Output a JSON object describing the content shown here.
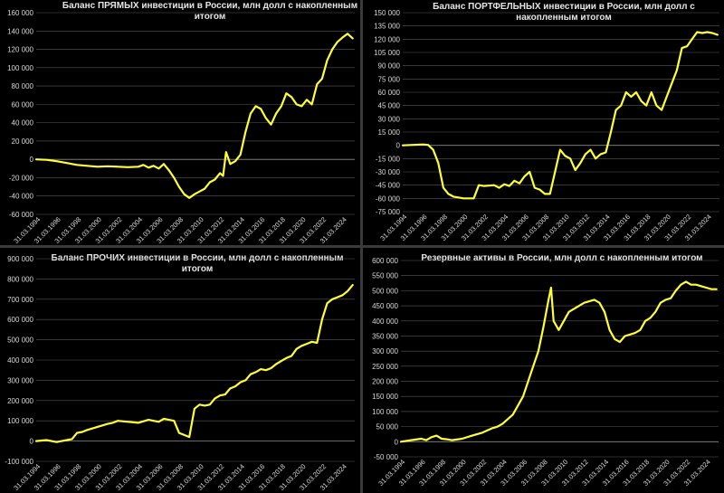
{
  "style": {
    "line_color": "#ffff33",
    "background": "#000000",
    "grid_color": "#595959",
    "text_color": "#e6e6e6"
  },
  "x_tick_labels": [
    "31.03.1994",
    "31.03.1996",
    "31.03.1998",
    "31.03.2000",
    "31.03.2002",
    "31.03.2004",
    "31.03.2006",
    "31.03.2008",
    "31.03.2010",
    "31.03.2012",
    "31.03.2014",
    "31.03.2016",
    "31.03.2018",
    "31.03.2020",
    "31.03.2022",
    "31.03.2024"
  ],
  "chart_data": [
    {
      "type": "line",
      "title": "Баланс ПРЯМЫХ инвестиции в России, млн долл с накопленным итогом",
      "title_lines": [
        "Баланс ПРЯМЫХ инвестиции в России, млн долл с накопленным",
        "итогом"
      ],
      "xlabel": "",
      "ylabel": "",
      "ylim": [
        -60000,
        160000
      ],
      "yticks": [
        -60000,
        -40000,
        -20000,
        0,
        20000,
        40000,
        60000,
        80000,
        100000,
        120000,
        140000,
        160000
      ],
      "ytick_labels": [
        "-60 000",
        "-40 000",
        "-20 000",
        "0",
        "20 000",
        "40 000",
        "60 000",
        "80 000",
        "100 000",
        "120 000",
        "140 000",
        "160 000"
      ],
      "grid": true,
      "series": [
        {
          "x": [
            1994.0,
            1995.0,
            1996.0,
            1997.0,
            1998.0,
            1999.0,
            2000.0,
            2001.0,
            2002.0,
            2003.0,
            2004.0,
            2004.5,
            2005.0,
            2005.5,
            2006.0,
            2006.5,
            2007.0,
            2007.5,
            2008.0,
            2008.5,
            2009.0,
            2009.5,
            2010.0,
            2010.5,
            2011.0,
            2011.5,
            2012.0,
            2012.3,
            2012.6,
            2013.0,
            2013.5,
            2014.0,
            2014.5,
            2015.0,
            2015.5,
            2016.0,
            2016.5,
            2017.0,
            2017.5,
            2018.0,
            2018.5,
            2019.0,
            2019.5,
            2020.0,
            2020.5,
            2021.0,
            2021.5,
            2022.0,
            2022.5,
            2023.0,
            2023.5,
            2024.0,
            2024.5,
            2025.0
          ],
          "values": [
            0,
            -500,
            -2000,
            -4000,
            -6000,
            -7000,
            -8000,
            -7500,
            -8000,
            -8500,
            -8000,
            -6000,
            -9000,
            -7000,
            -10000,
            -5000,
            -12000,
            -20000,
            -30000,
            -38000,
            -42000,
            -38000,
            -35000,
            -32000,
            -25000,
            -22000,
            -15000,
            -18000,
            8000,
            -5000,
            -2000,
            5000,
            30000,
            50000,
            58000,
            55000,
            45000,
            38000,
            50000,
            58000,
            72000,
            68000,
            60000,
            58000,
            65000,
            60000,
            82000,
            88000,
            108000,
            120000,
            128000,
            133000,
            137000,
            132000
          ]
        }
      ]
    },
    {
      "type": "line",
      "title": "Баланс ПОРТФЕЛЬНЫХ инвестиции в России, млн долл с накопленным итогом",
      "title_lines": [
        "Баланс ПОРТФЕЛЬНЫХ инвестиции в России, млн долл с",
        "накопленным итогом"
      ],
      "xlabel": "",
      "ylabel": "",
      "ylim": [
        -75000,
        150000
      ],
      "yticks": [
        -75000,
        -60000,
        -45000,
        -30000,
        -15000,
        0,
        15000,
        30000,
        45000,
        60000,
        75000,
        90000,
        105000,
        120000,
        135000,
        150000
      ],
      "ytick_labels": [
        "-75 000",
        "-60 000",
        "-45 000",
        "-30 000",
        "-15 000",
        "0",
        "15 000",
        "30 000",
        "45 000",
        "60 000",
        "75 000",
        "90 000",
        "105 000",
        "120 000",
        "135 000",
        "150 000"
      ],
      "grid": true,
      "series": [
        {
          "x": [
            1994.0,
            1995.0,
            1996.0,
            1996.5,
            1997.0,
            1997.5,
            1998.0,
            1998.5,
            1999.0,
            2000.0,
            2001.0,
            2001.5,
            2002.0,
            2003.0,
            2003.5,
            2004.0,
            2004.5,
            2005.0,
            2005.5,
            2006.0,
            2006.5,
            2007.0,
            2007.5,
            2008.0,
            2008.5,
            2009.0,
            2009.5,
            2010.0,
            2010.5,
            2011.0,
            2011.5,
            2012.0,
            2012.5,
            2013.0,
            2013.5,
            2014.0,
            2014.5,
            2015.0,
            2015.5,
            2016.0,
            2016.5,
            2017.0,
            2017.5,
            2018.0,
            2018.5,
            2019.0,
            2019.5,
            2020.0,
            2020.5,
            2021.0,
            2021.5,
            2022.0,
            2022.5,
            2023.0,
            2023.5,
            2024.0,
            2024.5,
            2025.0
          ],
          "values": [
            0,
            500,
            1000,
            500,
            -5000,
            -20000,
            -48000,
            -55000,
            -58000,
            -60000,
            -60000,
            -45000,
            -46000,
            -45000,
            -48000,
            -44000,
            -46000,
            -40000,
            -43000,
            -35000,
            -30000,
            -48000,
            -50000,
            -55000,
            -55000,
            -30000,
            -5000,
            -12000,
            -15000,
            -28000,
            -20000,
            -10000,
            -5000,
            -15000,
            -10000,
            -8000,
            15000,
            40000,
            45000,
            60000,
            55000,
            60000,
            50000,
            45000,
            60000,
            45000,
            40000,
            55000,
            70000,
            85000,
            110000,
            112000,
            120000,
            128000,
            127000,
            128000,
            127000,
            125000
          ]
        }
      ]
    },
    {
      "type": "line",
      "title": "Баланс ПРОЧИХ инвестиции в России, млн долл с накопленным итогом",
      "title_lines": [
        "Баланс ПРОЧИХ инвестиции в России, млн долл с накопленным",
        "итогом"
      ],
      "xlabel": "",
      "ylabel": "",
      "ylim": [
        -100000,
        900000
      ],
      "yticks": [
        -100000,
        0,
        100000,
        200000,
        300000,
        400000,
        500000,
        600000,
        700000,
        800000,
        900000
      ],
      "ytick_labels": [
        "-100 000",
        "0",
        "100 000",
        "200 000",
        "300 000",
        "400 000",
        "500 000",
        "600 000",
        "700 000",
        "800 000",
        "900 000"
      ],
      "grid": true,
      "series": [
        {
          "x": [
            1994.0,
            1995.0,
            1996.0,
            1996.5,
            1997.0,
            1997.5,
            1998.0,
            1998.5,
            1999.0,
            2000.0,
            2001.0,
            2001.5,
            2002.0,
            2003.0,
            2004.0,
            2005.0,
            2005.5,
            2006.0,
            2006.5,
            2007.0,
            2007.5,
            2008.0,
            2008.5,
            2009.0,
            2009.5,
            2010.0,
            2010.5,
            2011.0,
            2011.5,
            2012.0,
            2012.5,
            2013.0,
            2013.5,
            2014.0,
            2014.5,
            2015.0,
            2015.5,
            2016.0,
            2016.5,
            2017.0,
            2017.5,
            2018.0,
            2018.5,
            2019.0,
            2019.5,
            2020.0,
            2020.5,
            2021.0,
            2021.5,
            2022.0,
            2022.5,
            2023.0,
            2023.5,
            2024.0,
            2024.5,
            2025.0
          ],
          "values": [
            0,
            5000,
            -5000,
            0,
            5000,
            10000,
            40000,
            45000,
            55000,
            70000,
            85000,
            90000,
            100000,
            95000,
            90000,
            105000,
            100000,
            95000,
            110000,
            105000,
            100000,
            40000,
            30000,
            20000,
            160000,
            180000,
            175000,
            180000,
            210000,
            225000,
            230000,
            260000,
            270000,
            290000,
            300000,
            330000,
            340000,
            355000,
            350000,
            360000,
            380000,
            395000,
            410000,
            420000,
            455000,
            470000,
            480000,
            490000,
            485000,
            600000,
            680000,
            700000,
            710000,
            720000,
            740000,
            770000
          ]
        }
      ]
    },
    {
      "type": "line",
      "title": "Резервные активы в России, млн долл с накопленным итогом",
      "title_lines": [
        "Резервные активы в России, млн долл с накопленным итогом"
      ],
      "xlabel": "",
      "ylabel": "",
      "ylim": [
        -50000,
        600000
      ],
      "yticks": [
        -50000,
        0,
        50000,
        100000,
        150000,
        200000,
        250000,
        300000,
        350000,
        400000,
        450000,
        500000,
        550000,
        600000
      ],
      "ytick_labels": [
        "-50 000",
        "0",
        "50 000",
        "100 000",
        "150 000",
        "200 000",
        "250 000",
        "300 000",
        "350 000",
        "400 000",
        "450 000",
        "500 000",
        "550 000",
        "600 000"
      ],
      "grid": true,
      "series": [
        {
          "x": [
            1994.0,
            1995.0,
            1996.0,
            1996.5,
            1997.0,
            1997.5,
            1998.0,
            1998.5,
            1999.0,
            2000.0,
            2001.0,
            2002.0,
            2003.0,
            2003.5,
            2004.0,
            2004.5,
            2005.0,
            2005.5,
            2006.0,
            2006.5,
            2007.0,
            2007.5,
            2008.0,
            2008.5,
            2008.75,
            2009.0,
            2009.5,
            2010.0,
            2010.5,
            2011.0,
            2011.5,
            2012.0,
            2012.5,
            2013.0,
            2013.5,
            2014.0,
            2014.5,
            2015.0,
            2015.5,
            2016.0,
            2016.5,
            2017.0,
            2017.5,
            2018.0,
            2018.5,
            2019.0,
            2019.5,
            2020.0,
            2020.5,
            2021.0,
            2021.5,
            2022.0,
            2022.5,
            2023.0,
            2023.5,
            2024.0,
            2024.5,
            2025.0
          ],
          "values": [
            0,
            5000,
            10000,
            5000,
            15000,
            20000,
            10000,
            8000,
            5000,
            10000,
            20000,
            30000,
            45000,
            50000,
            60000,
            75000,
            90000,
            120000,
            150000,
            200000,
            250000,
            300000,
            380000,
            470000,
            510000,
            400000,
            370000,
            400000,
            430000,
            440000,
            450000,
            460000,
            465000,
            470000,
            460000,
            430000,
            370000,
            340000,
            330000,
            350000,
            355000,
            360000,
            370000,
            400000,
            410000,
            430000,
            460000,
            470000,
            475000,
            500000,
            520000,
            530000,
            520000,
            520000,
            515000,
            510000,
            505000,
            505000
          ]
        }
      ]
    }
  ]
}
